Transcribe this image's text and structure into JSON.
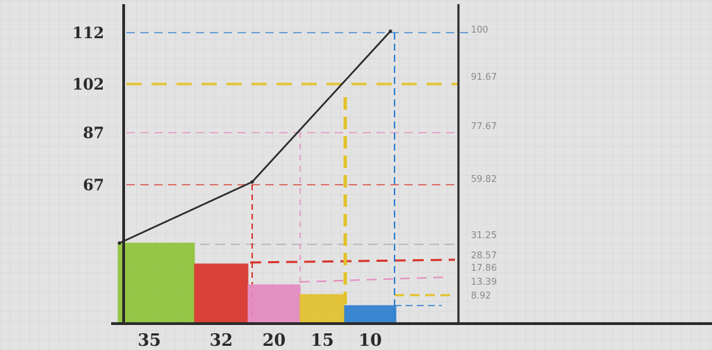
{
  "chart_data": {
    "type": "bar",
    "title": "",
    "xlabel": "",
    "ylabel": "",
    "categories": [
      "35",
      "32",
      "20",
      "15",
      "10"
    ],
    "values": [
      35,
      32,
      20,
      15,
      10
    ],
    "bar_colors": [
      "#8fc43a",
      "#d9342b",
      "#e48ac0",
      "#e3c12b",
      "#2c7fd0"
    ],
    "left_axis": {
      "ticks": [
        "67",
        "87",
        "102",
        "112"
      ],
      "tick_values": [
        67,
        87,
        102,
        112
      ],
      "ylim": [
        0,
        112
      ]
    },
    "right_axis": {
      "ticks": [
        "100",
        "91.67",
        "77.67",
        "59.82",
        "31.25",
        "28.57",
        "17.86",
        "13.39",
        "8.92"
      ],
      "tick_values": [
        100,
        91.67,
        77.67,
        59.82,
        31.25,
        28.57,
        17.86,
        13.39,
        8.92
      ],
      "ylim": [
        0,
        100
      ]
    },
    "cumulative_line": {
      "x": [
        "35",
        "20",
        "10"
      ],
      "y": [
        35,
        67,
        112
      ],
      "color": "#2b2b2b"
    },
    "grid": true,
    "line_colors": {
      "green": "#8fc43a",
      "red": "#d9342b",
      "pink": "#e48ac0",
      "yellow": "#e3c12b",
      "blue": "#2c7fd0",
      "dark": "#2b2b2b",
      "gray": "#8a8a8a"
    }
  }
}
